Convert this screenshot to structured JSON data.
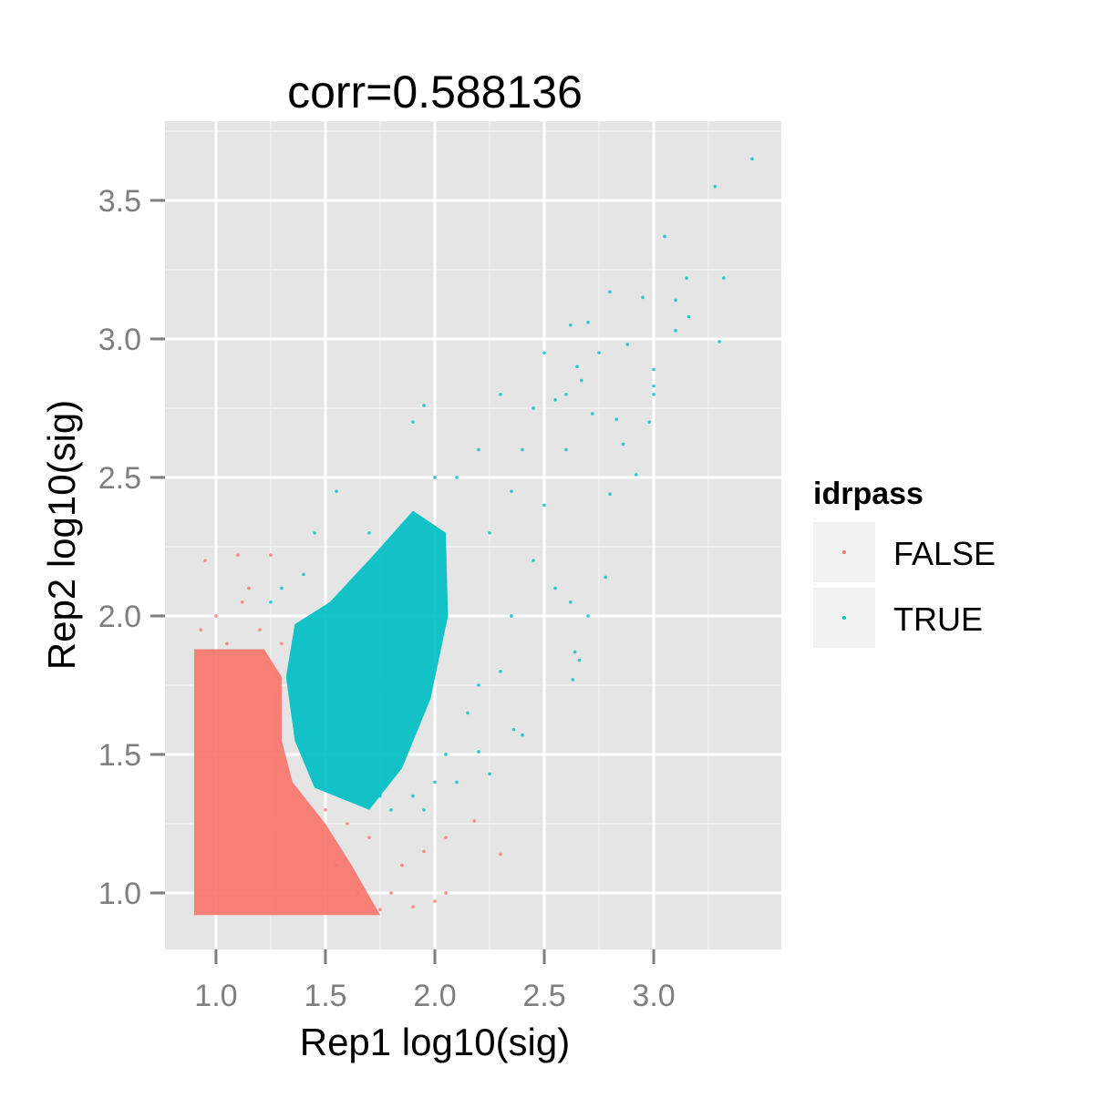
{
  "chart_data": {
    "type": "scatter",
    "title": "corr=0.588136",
    "xlabel": "Rep1 log10(sig)",
    "ylabel": "Rep2 log10(sig)",
    "xlim": [
      0.767,
      3.583
    ],
    "ylim": [
      0.796,
      3.786
    ],
    "xticks": [
      1.0,
      1.5,
      2.0,
      2.5,
      3.0
    ],
    "xtick_labels": [
      "1.0",
      "1.5",
      "2.0",
      "2.5",
      "3.0"
    ],
    "yticks": [
      1.0,
      1.5,
      2.0,
      2.5,
      3.0,
      3.5
    ],
    "ytick_labels": [
      "1.0",
      "1.5",
      "2.0",
      "2.5",
      "3.0",
      "3.5"
    ],
    "grid": true,
    "legend": {
      "title": "idrpass",
      "placement": "right",
      "entries": [
        "FALSE",
        "TRUE"
      ]
    },
    "series": [
      {
        "name": "FALSE",
        "color": "#F8766D",
        "dense_region": [
          [
            0.9,
            0.92
          ],
          [
            1.75,
            0.92
          ],
          [
            1.62,
            1.1
          ],
          [
            1.5,
            1.25
          ],
          [
            1.35,
            1.4
          ],
          [
            1.3,
            1.55
          ],
          [
            1.3,
            1.78
          ],
          [
            1.22,
            1.88
          ],
          [
            0.9,
            1.88
          ]
        ],
        "points": [
          [
            0.95,
            2.2
          ],
          [
            1.1,
            2.22
          ],
          [
            1.25,
            2.22
          ],
          [
            0.93,
            1.95
          ],
          [
            1.0,
            2.0
          ],
          [
            1.15,
            2.1
          ],
          [
            1.8,
            1.0
          ],
          [
            1.9,
            0.95
          ],
          [
            2.0,
            0.97
          ],
          [
            2.05,
            1.0
          ],
          [
            2.3,
            1.14
          ],
          [
            2.18,
            1.26
          ],
          [
            2.05,
            1.2
          ],
          [
            1.95,
            1.15
          ],
          [
            1.85,
            1.1
          ],
          [
            1.7,
            1.2
          ],
          [
            1.65,
            1.0
          ],
          [
            1.75,
            0.94
          ],
          [
            1.6,
            1.25
          ],
          [
            1.5,
            1.3
          ],
          [
            1.55,
            1.1
          ],
          [
            1.2,
            1.95
          ],
          [
            1.05,
            1.9
          ],
          [
            1.3,
            1.9
          ],
          [
            1.12,
            2.05
          ]
        ]
      },
      {
        "name": "TRUE",
        "color": "#00BFC4",
        "dense_region": [
          [
            1.32,
            1.78
          ],
          [
            1.36,
            1.55
          ],
          [
            1.45,
            1.38
          ],
          [
            1.7,
            1.3
          ],
          [
            1.85,
            1.45
          ],
          [
            1.98,
            1.7
          ],
          [
            2.06,
            2.0
          ],
          [
            2.05,
            2.3
          ],
          [
            1.9,
            2.38
          ],
          [
            1.72,
            2.22
          ],
          [
            1.52,
            2.05
          ],
          [
            1.36,
            1.97
          ]
        ],
        "points": [
          [
            3.45,
            3.65
          ],
          [
            3.28,
            3.55
          ],
          [
            3.05,
            3.37
          ],
          [
            3.15,
            3.22
          ],
          [
            3.32,
            3.22
          ],
          [
            2.8,
            3.17
          ],
          [
            2.95,
            3.15
          ],
          [
            3.1,
            3.14
          ],
          [
            3.16,
            3.08
          ],
          [
            2.7,
            3.06
          ],
          [
            2.62,
            3.05
          ],
          [
            3.1,
            3.03
          ],
          [
            3.3,
            2.99
          ],
          [
            2.88,
            2.98
          ],
          [
            2.75,
            2.95
          ],
          [
            2.5,
            2.95
          ],
          [
            3.0,
            2.89
          ],
          [
            2.65,
            2.9
          ],
          [
            2.67,
            2.85
          ],
          [
            3.0,
            2.8
          ],
          [
            3.0,
            2.83
          ],
          [
            2.6,
            2.8
          ],
          [
            2.55,
            2.78
          ],
          [
            2.72,
            2.73
          ],
          [
            2.83,
            2.71
          ],
          [
            2.86,
            2.62
          ],
          [
            2.98,
            2.7
          ],
          [
            2.92,
            2.51
          ],
          [
            2.8,
            2.44
          ],
          [
            2.78,
            2.14
          ],
          [
            2.64,
            1.87
          ],
          [
            2.66,
            1.84
          ],
          [
            2.63,
            1.77
          ],
          [
            2.7,
            2.0
          ],
          [
            2.62,
            2.05
          ],
          [
            2.4,
            1.57
          ],
          [
            2.36,
            1.59
          ],
          [
            2.25,
            1.43
          ],
          [
            2.2,
            1.51
          ],
          [
            2.3,
            2.8
          ],
          [
            2.4,
            2.6
          ],
          [
            2.5,
            2.4
          ],
          [
            2.45,
            2.2
          ],
          [
            2.55,
            2.1
          ],
          [
            2.35,
            2.0
          ],
          [
            2.3,
            1.8
          ],
          [
            2.2,
            1.75
          ],
          [
            2.15,
            1.65
          ],
          [
            2.05,
            1.5
          ],
          [
            2.1,
            1.4
          ],
          [
            1.95,
            2.76
          ],
          [
            1.9,
            2.7
          ],
          [
            2.0,
            2.5
          ],
          [
            2.2,
            2.6
          ],
          [
            2.1,
            2.5
          ],
          [
            1.55,
            2.45
          ],
          [
            1.7,
            2.3
          ],
          [
            1.45,
            2.3
          ],
          [
            1.4,
            2.15
          ],
          [
            1.3,
            2.1
          ],
          [
            1.25,
            2.05
          ],
          [
            1.95,
            1.3
          ],
          [
            1.9,
            1.35
          ],
          [
            2.0,
            1.4
          ],
          [
            1.8,
            1.3
          ],
          [
            1.75,
            1.35
          ],
          [
            2.25,
            2.3
          ],
          [
            2.35,
            2.45
          ],
          [
            2.6,
            2.6
          ],
          [
            2.45,
            2.75
          ]
        ]
      }
    ]
  }
}
